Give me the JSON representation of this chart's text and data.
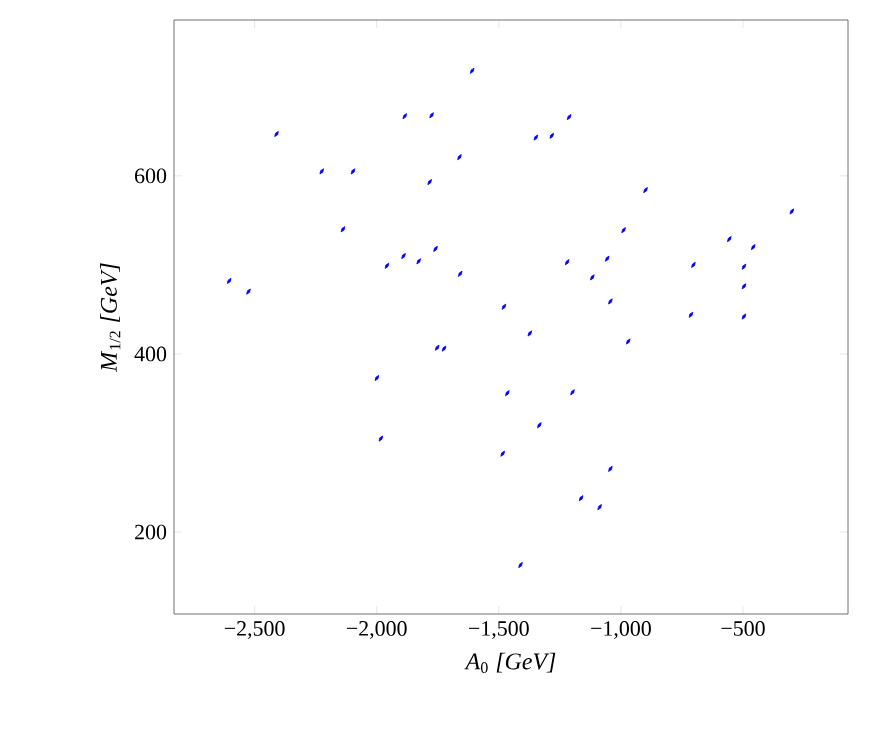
{
  "chart_data": {
    "type": "scatter",
    "xlabel": "*A*$_{0}$ *[GeV]*",
    "ylabel": "*M*$_{1/2}$ *[GeV]*",
    "xlim": [
      -2830,
      -70
    ],
    "ylim": [
      108,
      775
    ],
    "xticks": [
      {
        "value": -2500,
        "label": "−2,500"
      },
      {
        "value": -2000,
        "label": "−2,000"
      },
      {
        "value": -1500,
        "label": "−1,500"
      },
      {
        "value": -1000,
        "label": "−1,000"
      },
      {
        "value": -500,
        "label": "−500"
      }
    ],
    "yticks": [
      200,
      400,
      600
    ],
    "marker": "diamond",
    "grid": false,
    "series": [
      {
        "color": "#0000ff",
        "x": [
          -1609,
          -1885,
          -1775,
          -2410,
          -1661,
          -2225,
          -2097,
          -1783,
          -2138,
          -1958,
          -1890,
          -1828,
          -1759,
          -1658,
          -2604,
          -2525,
          -1479,
          -1212,
          -1348,
          -1283,
          -899,
          -989,
          -300,
          -556,
          -458,
          -1220,
          -1056,
          -1117,
          -703,
          -496,
          -496,
          -1043,
          -713,
          -496,
          -1373,
          -1752,
          -1724,
          -1999,
          -1465,
          -970,
          -1198,
          -1334,
          -1983,
          -1484,
          -1043,
          -1163,
          -1087,
          -1411
        ],
        "values": [
          718,
          667,
          668,
          647,
          621,
          605,
          605,
          593,
          540,
          499,
          510,
          504,
          518,
          490,
          482,
          470,
          453,
          666,
          643,
          645,
          584,
          539,
          560,
          529,
          520,
          503,
          507,
          486,
          500,
          498,
          476,
          459,
          444,
          442,
          423,
          407,
          406,
          373,
          356,
          414,
          357,
          320,
          305,
          288,
          271,
          238,
          228,
          163
        ]
      }
    ]
  }
}
